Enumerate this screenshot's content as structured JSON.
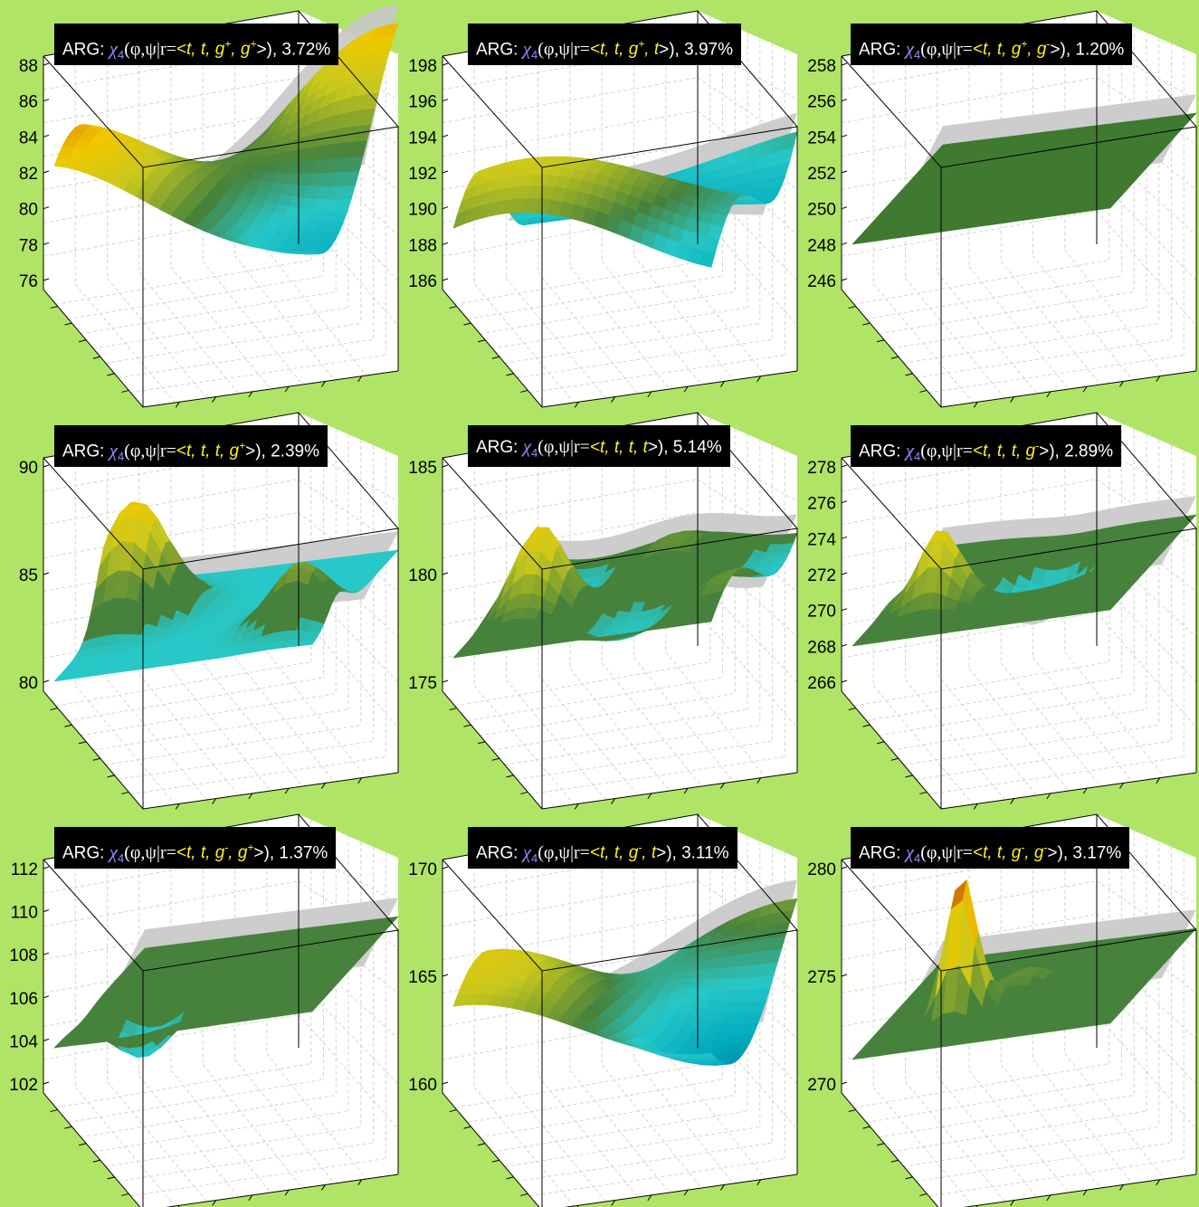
{
  "chart_data": [
    {
      "type": "surface",
      "title": "ARG: χ4(φ,ψ|r=<t, t, g+, g+>), 3.72%",
      "quad": [
        "t",
        "t",
        "g",
        "+",
        "g",
        "+"
      ],
      "percent": "3.72%",
      "zlim": [
        75,
        88
      ],
      "zticks": [
        "88",
        "86",
        "84",
        "82",
        "80",
        "78",
        "76"
      ],
      "shape": "saddle",
      "offset": 0
    },
    {
      "type": "surface",
      "title": "ARG: χ4(φ,ψ|r=<t, t, g+, t>), 3.97%",
      "quad": [
        "t",
        "t",
        "g",
        "+",
        "t",
        ""
      ],
      "percent": "3.97%",
      "zlim": [
        185,
        198
      ],
      "zticks": [
        "198",
        "196",
        "194",
        "192",
        "190",
        "188",
        "186"
      ],
      "shape": "wave",
      "offset": 0
    },
    {
      "type": "surface",
      "title": "ARG: χ4(φ,ψ|r=<t, t, g+, g->), 1.20%",
      "quad": [
        "t",
        "t",
        "g",
        "+",
        "g",
        "-"
      ],
      "percent": "1.20%",
      "zlim": [
        245,
        258
      ],
      "zticks": [
        "258",
        "256",
        "254",
        "252",
        "250",
        "248",
        "246"
      ],
      "shape": "flat",
      "offset": 0
    },
    {
      "type": "surface",
      "title": "ARG: χ4(φ,ψ|r=<t, t, t, g+>), 2.39%",
      "quad": [
        "t",
        "t",
        "t",
        "",
        "g",
        "+"
      ],
      "percent": "2.39%",
      "zlim": [
        80,
        92
      ],
      "zticks": [
        "90",
        "85",
        "80"
      ],
      "shape": "peaks",
      "offset": 0
    },
    {
      "type": "surface",
      "title": "ARG: χ4(φ,ψ|r=<t, t, t, t>), 5.14%",
      "quad": [
        "t",
        "t",
        "t",
        "",
        "t",
        ""
      ],
      "percent": "5.14%",
      "zlim": [
        174,
        186
      ],
      "zticks": [
        "185",
        "180",
        "175"
      ],
      "shape": "bumps",
      "offset": 0
    },
    {
      "type": "surface",
      "title": "ARG: χ4(φ,ψ|r=<t, t, t, g->), 2.89%",
      "quad": [
        "t",
        "t",
        "t",
        "",
        "g",
        "-"
      ],
      "percent": "2.89%",
      "zlim": [
        265,
        278
      ],
      "zticks": [
        "278",
        "276",
        "274",
        "272",
        "270",
        "268",
        "266"
      ],
      "shape": "bumps2",
      "offset": 0
    },
    {
      "type": "surface",
      "title": "ARG: χ4(φ,ψ|r=<t, t, g-, g+>), 1.37%",
      "quad": [
        "t",
        "t",
        "g",
        "-",
        "g",
        "+"
      ],
      "percent": "1.37%",
      "zlim": [
        101,
        113
      ],
      "zticks": [
        "112",
        "110",
        "108",
        "106",
        "104",
        "102"
      ],
      "shape": "dip",
      "offset": 0
    },
    {
      "type": "surface",
      "title": "ARG: χ4(φ,ψ|r=<t, t, g-, t>), 3.11%",
      "quad": [
        "t",
        "t",
        "g",
        "-",
        "t",
        ""
      ],
      "percent": "3.11%",
      "zlim": [
        159,
        172
      ],
      "zticks": [
        "170",
        "165",
        "160"
      ],
      "shape": "saddle2",
      "offset": 0
    },
    {
      "type": "surface",
      "title": "ARG: χ4(φ,ψ|r=<t, t, g-, g->), 3.17%",
      "quad": [
        "t",
        "t",
        "g",
        "-",
        "g",
        "-"
      ],
      "percent": "3.17%",
      "zlim": [
        269,
        282
      ],
      "zticks": [
        "280",
        "275",
        "270"
      ],
      "shape": "spike",
      "offset": 0
    }
  ],
  "labels": {
    "arg": "ARG: ",
    "chi": "χ",
    "sub": "4",
    "args": "(φ,ψ|r=",
    "open": "<",
    "close": ">), "
  }
}
